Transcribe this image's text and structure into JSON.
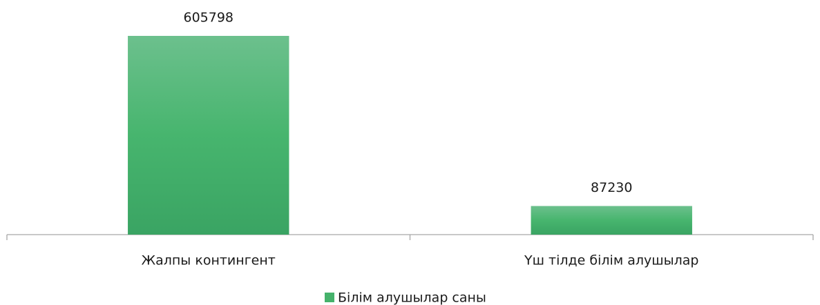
{
  "chart_data": {
    "type": "bar",
    "categories": [
      "Жалпы контингент",
      "Үш тілде білім алушылар"
    ],
    "series": [
      {
        "name": "Білім алушылар саны",
        "color": "#45b26b",
        "values": [
          605798,
          87230
        ]
      }
    ]
  }
}
